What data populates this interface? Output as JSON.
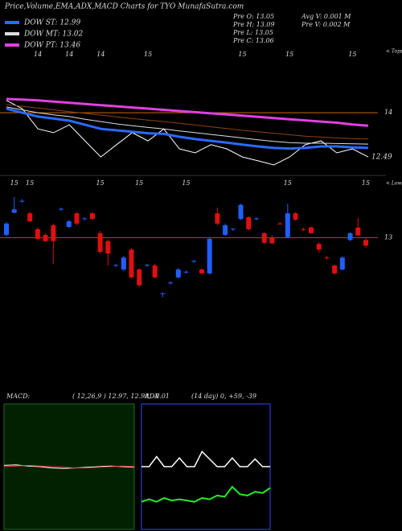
{
  "header": {
    "title": "Price,Volume,EMA,ADX,MACD Charts for TYO MunafaSutra.com",
    "info": [
      "Pre  O: 13.05",
      "Pre  H: 13.09",
      "Pre  L: 13.05",
      "Pre  C: 13.06",
      "Avg V: 0.001 M",
      "Pre  V: 0.002 M"
    ]
  },
  "chart_data": [
    {
      "type": "line",
      "annotation": "< Tops",
      "categories": [
        null,
        null,
        "14",
        null,
        "14",
        null,
        "14",
        null,
        null,
        "15",
        null,
        null,
        null,
        null,
        null,
        "15",
        null,
        null,
        "15",
        null,
        null,
        null,
        "15",
        null
      ],
      "ylim": [
        12,
        16.2
      ],
      "yticks": [
        14
      ],
      "grid_color": "#cc6600",
      "last_price": 12.49,
      "series": [
        {
          "color": "#ffffff",
          "width": 1,
          "values": [
            14.42,
            14.14,
            13.45,
            13.32,
            13.59,
            13.04,
            12.49,
            12.91,
            13.32,
            13.04,
            13.45,
            12.77,
            12.63,
            12.91,
            12.77,
            12.49,
            12.36,
            12.22,
            12.49,
            12.91,
            13.04,
            12.63,
            12.77,
            12.49
          ]
        },
        {
          "name": "DOW ST: 12.99",
          "color": "#2a6bff",
          "width": 3,
          "values": [
            14.14,
            14.0,
            13.87,
            13.8,
            13.73,
            13.59,
            13.45,
            13.4,
            13.35,
            13.3,
            13.28,
            13.18,
            13.1,
            13.04,
            12.98,
            12.91,
            12.85,
            12.8,
            12.78,
            12.8,
            12.85,
            12.85,
            12.82,
            12.8
          ]
        },
        {
          "name": "DOW MT: 13.02",
          "color": "#dddddd",
          "width": 1,
          "values": [
            14.2,
            14.1,
            14.0,
            13.93,
            13.87,
            13.78,
            13.7,
            13.62,
            13.56,
            13.5,
            13.45,
            13.38,
            13.32,
            13.26,
            13.2,
            13.14,
            13.08,
            13.02,
            12.98,
            12.96,
            12.96,
            12.95,
            12.94,
            12.93
          ]
        },
        {
          "color": "#8b4513",
          "width": 1,
          "values": [
            14.28,
            14.22,
            14.16,
            14.1,
            14.04,
            13.98,
            13.92,
            13.86,
            13.8,
            13.75,
            13.7,
            13.64,
            13.58,
            13.52,
            13.46,
            13.4,
            13.35,
            13.3,
            13.25,
            13.2,
            13.17,
            13.14,
            13.12,
            13.1
          ]
        },
        {
          "name": "DOW PT: 13.46",
          "color": "#e040e0",
          "width": 3,
          "values": [
            14.47,
            14.45,
            14.42,
            14.38,
            14.34,
            14.3,
            14.26,
            14.22,
            14.18,
            14.14,
            14.1,
            14.06,
            14.02,
            13.98,
            13.94,
            13.9,
            13.86,
            13.82,
            13.78,
            13.74,
            13.7,
            13.66,
            13.6,
            13.56
          ]
        }
      ]
    },
    {
      "type": "candlestick",
      "annotation": "< Lows",
      "categories": [
        null,
        "15",
        null,
        "15",
        null,
        null,
        null,
        null,
        null,
        null,
        null,
        null,
        "15",
        null,
        null,
        null,
        null,
        "15",
        null,
        null,
        null,
        null,
        null,
        "15",
        null,
        null,
        null,
        null,
        null,
        null,
        null,
        null,
        null,
        null,
        null,
        null,
        "15",
        null,
        null,
        null,
        null,
        null,
        null,
        null,
        null,
        null,
        "15"
      ],
      "ylim": [
        11.8,
        14.0
      ],
      "yticks": [
        13
      ],
      "grid_color": "#cc3300",
      "up_color": "#1f5fff",
      "down_color": "#e01010",
      "open": [
        13.05,
        13.44,
        13.64,
        13.43,
        13.15,
        13.05,
        13.22,
        13.5,
        13.19,
        13.43,
        13.33,
        13.43,
        13.08,
        12.94,
        12.51,
        12.44,
        12.79,
        12.44,
        12.51,
        12.51,
        12.01,
        12.2,
        12.3,
        12.39,
        12.58,
        12.44,
        12.37,
        13.43,
        13.05,
        13.15,
        13.33,
        13.36,
        13.33,
        13.08,
        13.01,
        13.25,
        13.01,
        13.43,
        13.15,
        13.18,
        12.89,
        12.65,
        12.51,
        12.44,
        12.96,
        13.18,
        12.96
      ],
      "high": [
        13.28,
        13.72,
        13.68,
        13.46,
        13.18,
        13.08,
        13.25,
        13.53,
        13.31,
        13.45,
        13.36,
        13.45,
        13.12,
        12.97,
        12.53,
        12.68,
        12.82,
        12.46,
        12.54,
        12.54,
        12.03,
        12.23,
        12.47,
        12.42,
        12.61,
        12.46,
        13.01,
        13.53,
        13.25,
        13.17,
        13.6,
        13.38,
        13.36,
        13.1,
        13.04,
        13.28,
        13.6,
        13.45,
        13.18,
        13.2,
        12.92,
        12.68,
        12.53,
        12.68,
        13.1,
        13.35,
        12.99
      ],
      "low": [
        13.02,
        13.43,
        13.62,
        13.27,
        12.95,
        12.92,
        12.54,
        13.47,
        13.17,
        13.22,
        13.31,
        13.32,
        12.72,
        12.51,
        12.48,
        12.41,
        12.28,
        12.13,
        12.49,
        12.28,
        11.95,
        12.17,
        12.28,
        12.37,
        12.56,
        12.35,
        12.35,
        13.22,
        13.03,
        13.12,
        13.31,
        13.13,
        13.31,
        12.88,
        12.89,
        13.23,
        12.99,
        13.3,
        13.12,
        13.07,
        12.74,
        12.62,
        12.35,
        12.42,
        12.94,
        13.02,
        12.82
      ],
      "close": [
        13.25,
        13.5,
        13.65,
        13.29,
        12.98,
        12.94,
        12.94,
        13.51,
        13.29,
        13.25,
        13.34,
        13.33,
        12.75,
        12.72,
        12.52,
        12.65,
        12.3,
        12.16,
        12.52,
        12.3,
        12.02,
        12.21,
        12.44,
        12.4,
        12.59,
        12.37,
        12.98,
        13.25,
        13.22,
        13.16,
        13.58,
        13.15,
        13.34,
        12.91,
        12.9,
        13.24,
        13.43,
        13.32,
        13.14,
        13.08,
        12.79,
        12.64,
        12.37,
        12.65,
        13.08,
        13.04,
        12.86
      ]
    },
    {
      "type": "line",
      "title": "MACD:",
      "subtitle": "( 12,26,9 ) 12.97, 12.98, -0.01",
      "ylim": [
        -1,
        1
      ],
      "background": "#002200",
      "border": "#226622",
      "series": [
        {
          "color": "#ffffff",
          "width": 1,
          "values": [
            0.02,
            0.03,
            0.01,
            0.0,
            -0.02,
            -0.03,
            -0.02,
            -0.01,
            0.0,
            0.01,
            0.0,
            -0.01
          ]
        },
        {
          "color": "#ff3030",
          "width": 1,
          "values": [
            0.0,
            0.01,
            0.02,
            0.01,
            0.0,
            -0.01,
            -0.02,
            -0.02,
            -0.01,
            0.0,
            0.01,
            0.0
          ]
        }
      ]
    },
    {
      "type": "line",
      "title": "ADX",
      "subtitle": "(14  day) 0, +59, -39",
      "ylim": [
        0,
        100
      ],
      "background": "#000000",
      "border": "#3344ff",
      "series": [
        {
          "color": "#ffffff",
          "width": 1.5,
          "values": [
            50,
            50,
            58,
            50,
            50,
            57,
            50,
            50,
            62,
            56,
            50,
            50,
            57,
            50,
            50,
            56,
            50,
            50
          ]
        },
        {
          "color": "#22ee22",
          "width": 2,
          "values": [
            22,
            24,
            22,
            25,
            23,
            24,
            23,
            22,
            25,
            24,
            27,
            26,
            34,
            28,
            27,
            30,
            29,
            33
          ]
        }
      ]
    }
  ]
}
